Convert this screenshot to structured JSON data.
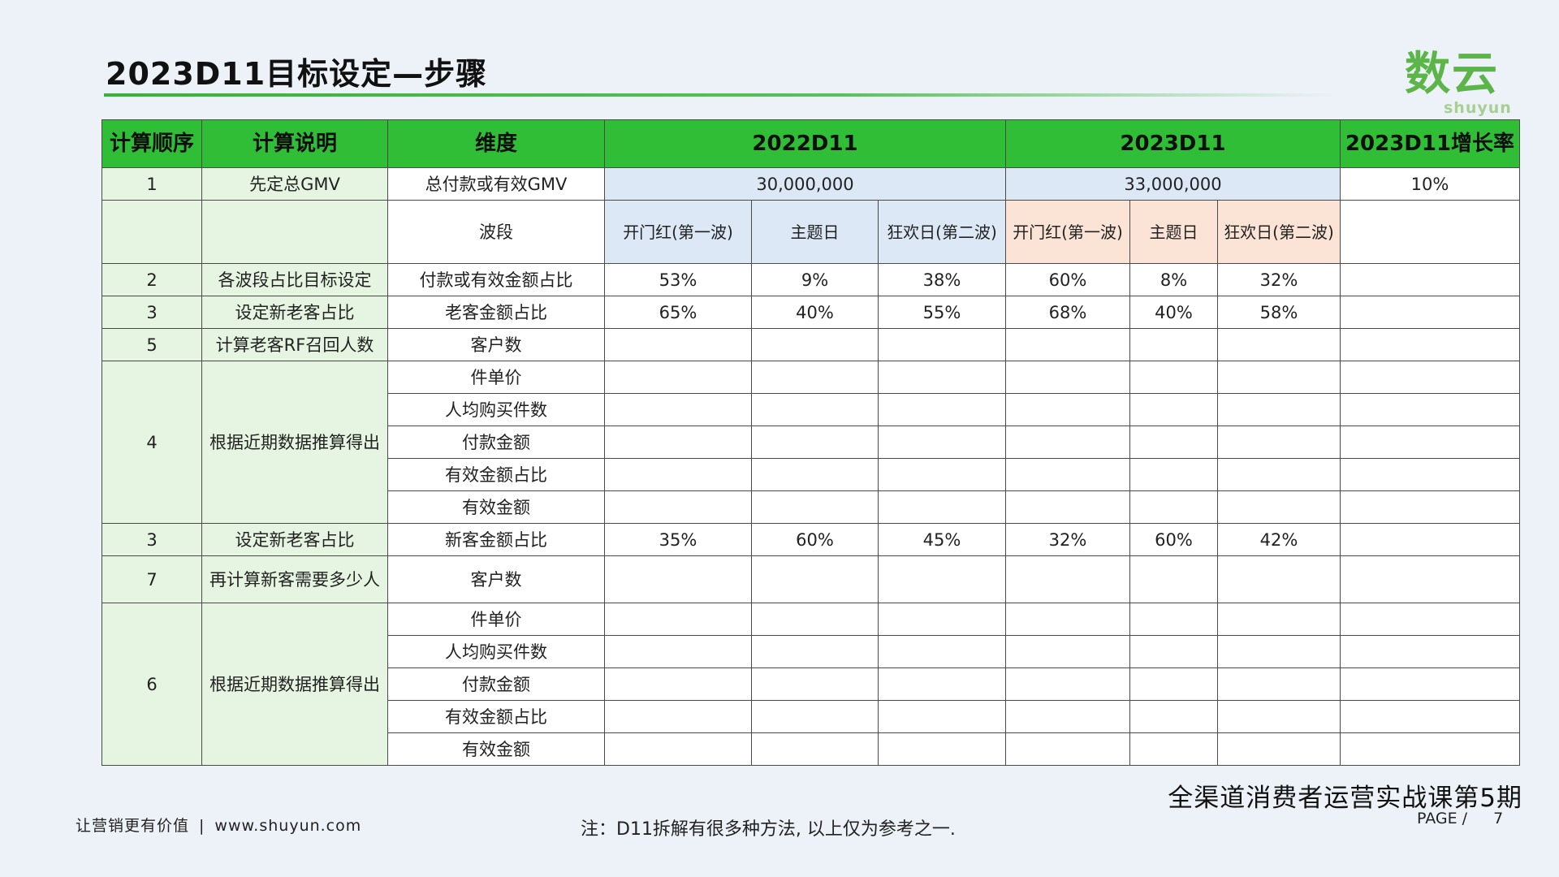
{
  "page_title": "2023D11目标设定—步骤",
  "logo": {
    "cn": "数云",
    "en": "shuyun"
  },
  "table": {
    "headers": {
      "order": "计算顺序",
      "desc": "计算说明",
      "dimension": "维度",
      "y2022": "2022D11",
      "y2023": "2023D11",
      "growth": "2023D11增长率"
    },
    "gmv_row": {
      "order": "1",
      "desc": "先定总GMV",
      "dimension": "总付款或有效GMV",
      "v2022": "30,000,000",
      "v2023": "33,000,000",
      "growth": "10%"
    },
    "wave_row": {
      "dimension": "波段",
      "w2022": [
        "开门红(第一波)",
        "主题日",
        "狂欢日(第二波)"
      ],
      "w2023": [
        "开门红(第一波)",
        "主题日",
        "狂欢日(第二波)"
      ]
    },
    "share_row": {
      "order": "2",
      "desc": "各波段占比目标设定",
      "dimension": "付款或有效金额占比",
      "values": [
        "53%",
        "9%",
        "38%",
        "60%",
        "8%",
        "32%"
      ]
    },
    "old_row": {
      "order": "3",
      "desc": "设定新老客占比",
      "dimension": "老客金额占比",
      "values": [
        "65%",
        "40%",
        "55%",
        "68%",
        "40%",
        "58%"
      ]
    },
    "rf_row": {
      "order": "5",
      "desc": "计算老客RF召回人数",
      "dimension": "客户数"
    },
    "old_detail": {
      "order": "4",
      "desc": "根据近期数据推算得出",
      "dims": [
        "件单价",
        "人均购买件数",
        "付款金额",
        "有效金额占比",
        "有效金额"
      ]
    },
    "new_row": {
      "order": "3",
      "desc": "设定新老客占比",
      "dimension": "新客金额占比",
      "values": [
        "35%",
        "60%",
        "45%",
        "32%",
        "60%",
        "42%"
      ]
    },
    "new_count_row": {
      "order": "7",
      "desc": "再计算新客需要多少人",
      "dimension": "客户数"
    },
    "new_detail": {
      "order": "6",
      "desc": "根据近期数据推算得出",
      "dims": [
        "件单价",
        "人均购买件数",
        "付款金额",
        "有效金额占比",
        "有效金额"
      ]
    }
  },
  "footer": {
    "slogan": "让营销更有价值",
    "site": "www.shuyun.com",
    "note": "注：D11拆解有很多种方法, 以上仅为参考之一.",
    "course": "全渠道消费者运营实战课第5期",
    "page_label": "PAGE /",
    "page_num": "7"
  },
  "colors": {
    "header_green": "#2fbe36",
    "light_green": "#e6f5e1",
    "light_blue": "#dce8f6",
    "light_orange": "#fbe3d6",
    "logo_green": "#5bb548"
  }
}
